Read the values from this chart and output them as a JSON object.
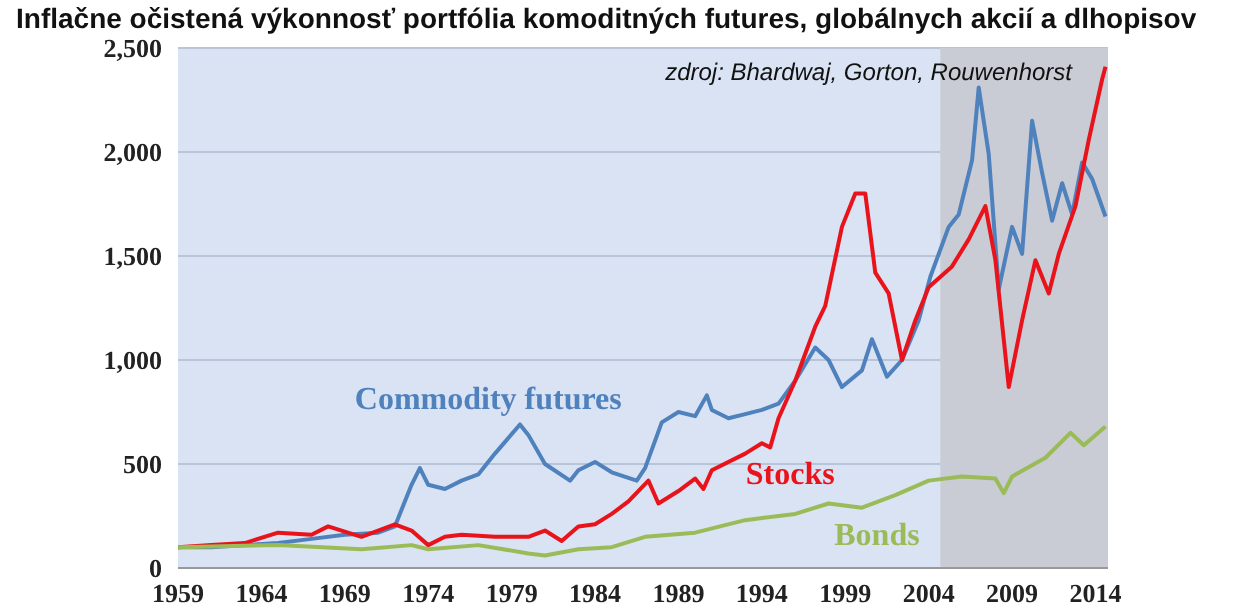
{
  "chart_data": {
    "type": "line",
    "title": "Inflačne očistená výkonnosť portfólia komoditných futures, globálnych akcií a dlhopisov",
    "annotations": [
      "zdroj: Bhardwaj, Gorton, Rouwenhorst"
    ],
    "series": [
      {
        "name": "Commodity futures",
        "color": "#4f81bd",
        "x": [
          1959,
          1961,
          1963,
          1965,
          1967,
          1969,
          1971,
          1972,
          1973,
          1973.5,
          1974,
          1975,
          1976,
          1977,
          1978,
          1979.5,
          1980,
          1981,
          1982.5,
          1983,
          1984,
          1985,
          1986.5,
          1987,
          1988,
          1989,
          1990,
          1990.7,
          1991,
          1992,
          1993,
          1994,
          1995,
          1996,
          1997.2,
          1998,
          1998.8,
          2000,
          2000.6,
          2001.5,
          2002.4,
          2003.4,
          2004.1,
          2005.2,
          2005.8,
          2006.6,
          2007,
          2007.6,
          2008.2,
          2009,
          2009.6,
          2010.2,
          2010.8,
          2011.4,
          2012,
          2012.6,
          2013.2,
          2013.8,
          2014.6
        ],
        "values": [
          100,
          100,
          110,
          120,
          140,
          160,
          170,
          200,
          400,
          480,
          400,
          380,
          420,
          450,
          550,
          690,
          640,
          500,
          420,
          470,
          510,
          460,
          420,
          480,
          700,
          750,
          730,
          830,
          760,
          720,
          740,
          760,
          790,
          900,
          1060,
          1000,
          870,
          950,
          1100,
          920,
          1000,
          1190,
          1400,
          1640,
          1700,
          1960,
          2310,
          1990,
          1340,
          1640,
          1510,
          2150,
          1900,
          1670,
          1850,
          1700,
          1950,
          1870,
          1690
        ]
      },
      {
        "name": "Stocks",
        "color": "#e8131b",
        "x": [
          1959,
          1961,
          1963,
          1965,
          1967,
          1968,
          1970,
          1971,
          1972,
          1973,
          1974,
          1975,
          1976,
          1978,
          1980,
          1981,
          1982,
          1983,
          1984,
          1985,
          1986,
          1987.2,
          1987.8,
          1989,
          1990,
          1990.5,
          1991,
          1993,
          1994,
          1994.5,
          1995,
          1996,
          1997.2,
          1997.8,
          1998.8,
          1999.6,
          2000.2,
          2000.8,
          2001.6,
          2002.4,
          2003.2,
          2004,
          2005.4,
          2006.4,
          2007.4,
          2008,
          2008.8,
          2009.6,
          2010.4,
          2011.2,
          2011.8,
          2012.8,
          2013.6,
          2014.4,
          2014.6
        ],
        "values": [
          100,
          110,
          120,
          170,
          160,
          200,
          150,
          180,
          210,
          180,
          110,
          150,
          160,
          150,
          150,
          180,
          130,
          200,
          210,
          260,
          320,
          420,
          310,
          370,
          430,
          380,
          470,
          550,
          600,
          580,
          720,
          900,
          1160,
          1260,
          1640,
          1800,
          1800,
          1420,
          1320,
          1000,
          1190,
          1350,
          1450,
          1580,
          1740,
          1480,
          870,
          1190,
          1480,
          1320,
          1510,
          1740,
          2060,
          2350,
          2410
        ]
      },
      {
        "name": "Bonds",
        "color": "#9bbb59",
        "x": [
          1959,
          1965,
          1970,
          1973,
          1974,
          1977,
          1980,
          1981,
          1983,
          1985,
          1987,
          1990,
          1993,
          1996,
          1998,
          2000,
          2002,
          2004,
          2006,
          2008,
          2008.5,
          2009,
          2011,
          2012.5,
          2013.3,
          2014.6
        ],
        "values": [
          100,
          110,
          90,
          110,
          90,
          110,
          70,
          60,
          90,
          100,
          150,
          170,
          230,
          260,
          310,
          290,
          350,
          420,
          440,
          430,
          360,
          440,
          530,
          650,
          590,
          680
        ]
      }
    ],
    "xlim": [
      1959,
      2014.75
    ],
    "xticks": [
      1959,
      1964,
      1969,
      1974,
      1979,
      1984,
      1989,
      1994,
      1999,
      2004,
      2009,
      2014
    ],
    "ylim": [
      0,
      2500
    ],
    "yticks": [
      0,
      500,
      {
        "value": 1000,
        "label": "1,000"
      },
      {
        "value": 1500,
        "label": "1,500"
      },
      {
        "value": 2000,
        "label": "2,000"
      },
      {
        "value": 2500,
        "label": "2,500"
      }
    ],
    "bands": [
      {
        "axis": "x",
        "from": 2004.7,
        "to": 2014.75,
        "color": "#c9ccd4"
      }
    ],
    "grid": "y",
    "marker": "none",
    "line_style": "solid"
  }
}
